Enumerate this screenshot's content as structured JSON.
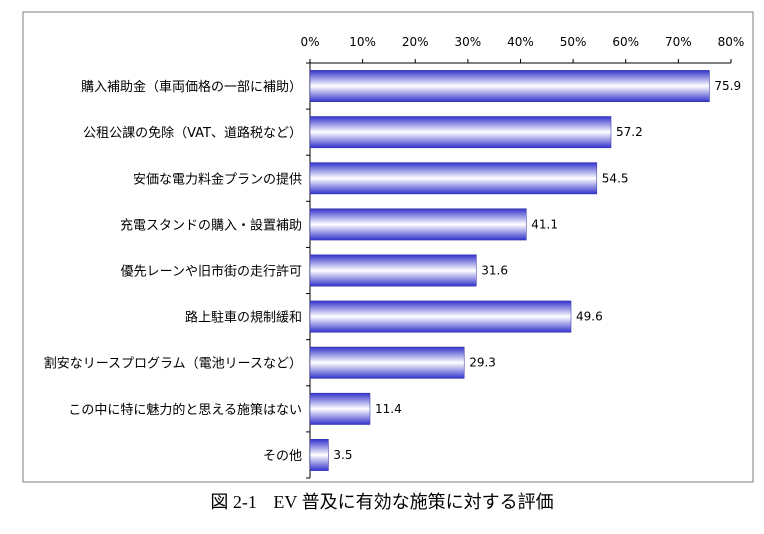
{
  "chart_data": {
    "type": "bar",
    "orientation": "horizontal",
    "categories": [
      "購入補助金（車両価格の一部に補助）",
      "公租公課の免除（VAT、道路税など）",
      "安価な電力料金プランの提供",
      "充電スタンドの購入・設置補助",
      "優先レーンや旧市街の走行許可",
      "路上駐車の規制緩和",
      "割安なリースプログラム（電池リースなど）",
      "この中に特に魅力的と思える施策はない",
      "その他"
    ],
    "values": [
      75.9,
      57.2,
      54.5,
      41.1,
      31.6,
      49.6,
      29.3,
      11.4,
      3.5
    ],
    "data_labels": [
      "75.9",
      "57.2",
      "54.5",
      "41.1",
      "31.6",
      "49.6",
      "29.3",
      "11.4",
      "3.5"
    ],
    "x_ticks": [
      "0%",
      "10%",
      "20%",
      "30%",
      "40%",
      "50%",
      "60%",
      "70%",
      "80%"
    ],
    "xlim": [
      0,
      80
    ],
    "axis_position": "top",
    "grid": false,
    "bar_color": "#3333cc",
    "bar_highlight": "#ffffff"
  },
  "caption": {
    "figure_no": "図 2-1",
    "title": "EV 普及に有効な施策に対する評価"
  }
}
